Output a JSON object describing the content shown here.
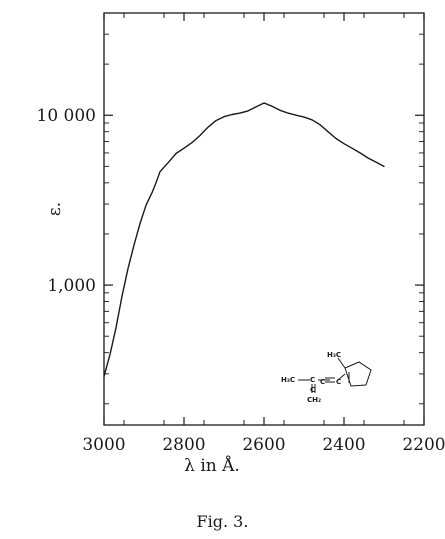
{
  "chart_data": {
    "type": "line",
    "yscale": "log",
    "xlabel": "λ in Å.",
    "ylabel": "ε.",
    "x_ticks": [
      3000,
      2800,
      2600,
      2400,
      2200
    ],
    "x_tick_labels": [
      "3000",
      "2800",
      "2600",
      "2400",
      "2200"
    ],
    "y_tick_labels": [
      {
        "value": 10000,
        "label": "10 000"
      },
      {
        "value": 1000,
        "label": "1,000"
      }
    ],
    "xlim": [
      3000,
      2200
    ],
    "ylim": [
      150,
      40000
    ],
    "grid": false,
    "series": [
      {
        "name": "",
        "x": [
          3000,
          2985,
          2970,
          2955,
          2940,
          2925,
          2910,
          2895,
          2880,
          2870,
          2860,
          2840,
          2820,
          2800,
          2780,
          2760,
          2740,
          2720,
          2700,
          2680,
          2660,
          2640,
          2620,
          2600,
          2580,
          2560,
          2540,
          2520,
          2500,
          2480,
          2460,
          2440,
          2420,
          2400,
          2380,
          2360,
          2340,
          2320,
          2300
        ],
        "y": [
          290,
          390,
          560,
          860,
          1250,
          1720,
          2300,
          2950,
          3500,
          4000,
          4650,
          5250,
          5950,
          6400,
          6900,
          7600,
          8500,
          9300,
          9800,
          10100,
          10300,
          10600,
          11200,
          11800,
          11300,
          10700,
          10300,
          10000,
          9750,
          9400,
          8800,
          8000,
          7300,
          6800,
          6400,
          6000,
          5600,
          5300,
          5000
        ]
      }
    ],
    "annotation": {
      "type": "structural-formula",
      "labels": [
        "H₃C",
        "C",
        "C",
        "C",
        "C",
        "CH₂",
        "H₃C"
      ]
    }
  },
  "caption": "Fig. 3."
}
